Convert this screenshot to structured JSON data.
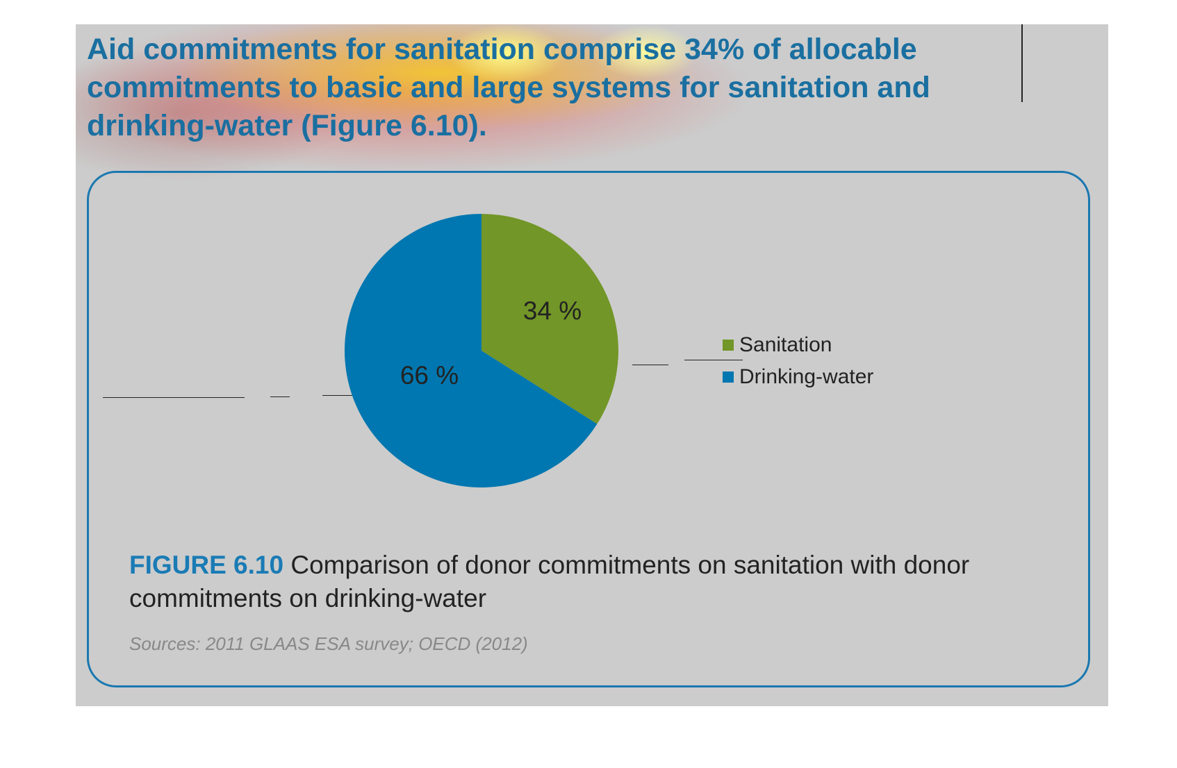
{
  "headline": "Aid commitments for sanitation comprise 34% of allocable commitments to basic and large systems for sanitation and drinking-water (Figure 6.10).",
  "caption": {
    "label": "FIGURE 6.10",
    "text": "Comparison of donor commitments on sanitation with donor commitments on drinking-water"
  },
  "source": "Sources: 2011 GLAAS ESA survey; OECD (2012)",
  "chart_data": {
    "type": "pie",
    "title": "",
    "slices": [
      {
        "name": "Sanitation",
        "value": 34,
        "label": "34 %",
        "color": "#729627"
      },
      {
        "name": "Drinking-water",
        "value": 66,
        "label": "66 %",
        "color": "#0077b0"
      }
    ],
    "start": "12 o'clock",
    "direction": "clockwise",
    "legend": "right"
  },
  "colors": {
    "headline": "#1a6fa0",
    "frame": "#1a78b0",
    "caption_label": "#1a7bb5",
    "panel": "#cccccc"
  }
}
